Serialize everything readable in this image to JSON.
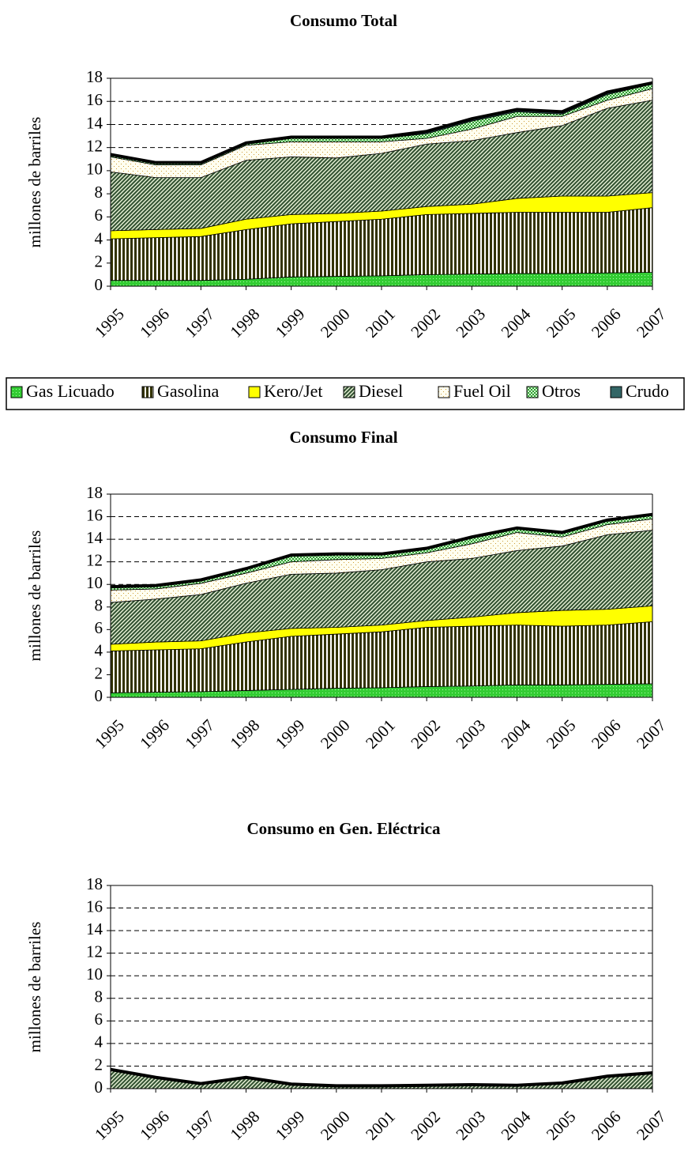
{
  "chart_data": [
    {
      "type": "stacked-area",
      "title": "Consumo Total",
      "ylabel": "millones de barriles",
      "categories": [
        "1995",
        "1996",
        "1997",
        "1998",
        "1999",
        "2000",
        "2001",
        "2002",
        "2003",
        "2004",
        "2005",
        "2006",
        "2007"
      ],
      "ylim": [
        0,
        18
      ],
      "yticks": [
        0,
        2,
        4,
        6,
        8,
        10,
        12,
        14,
        16,
        18
      ],
      "grid": true,
      "legend": "bottom",
      "series": [
        {
          "name": "Gas Licuado",
          "color": "#33cc33",
          "pattern": "dots",
          "values": [
            0.5,
            0.5,
            0.5,
            0.6,
            0.8,
            0.85,
            0.9,
            1.0,
            1.05,
            1.1,
            1.1,
            1.15,
            1.2
          ]
        },
        {
          "name": "Gasolina",
          "color": "#333300",
          "pattern": "vlines",
          "values": [
            3.6,
            3.7,
            3.8,
            4.3,
            4.6,
            4.75,
            4.9,
            5.2,
            5.25,
            5.3,
            5.3,
            5.25,
            5.6
          ]
        },
        {
          "name": "Kero/Jet",
          "color": "#ffff00",
          "pattern": "solid",
          "values": [
            0.7,
            0.7,
            0.7,
            0.9,
            0.8,
            0.7,
            0.7,
            0.7,
            0.8,
            1.2,
            1.4,
            1.4,
            1.3
          ]
        },
        {
          "name": "Diesel",
          "color": "#2f4f2f",
          "pattern": "diag",
          "values": [
            5.1,
            4.5,
            4.4,
            5.1,
            5.0,
            4.8,
            5.0,
            5.4,
            5.5,
            5.7,
            6.1,
            7.6,
            8.0
          ]
        },
        {
          "name": "Fuel Oil",
          "color": "#cc9933",
          "pattern": "sparse",
          "values": [
            1.3,
            1.1,
            1.1,
            1.3,
            1.3,
            1.4,
            1.0,
            0.5,
            1.0,
            1.4,
            0.8,
            0.7,
            1.0
          ]
        },
        {
          "name": "Otros",
          "color": "#339933",
          "pattern": "check",
          "values": [
            0.1,
            0.1,
            0.1,
            0.1,
            0.3,
            0.3,
            0.3,
            0.4,
            0.7,
            0.4,
            0.2,
            0.5,
            0.4
          ]
        },
        {
          "name": "Crudo",
          "color": "#336666",
          "pattern": "solid",
          "values": [
            0.1,
            0.1,
            0.1,
            0.1,
            0.1,
            0.1,
            0.1,
            0.2,
            0.2,
            0.2,
            0.2,
            0.2,
            0.1
          ]
        }
      ]
    },
    {
      "type": "stacked-area",
      "title": "Consumo Final",
      "ylabel": "millones de barriles",
      "categories": [
        "1995",
        "1996",
        "1997",
        "1998",
        "1999",
        "2000",
        "2001",
        "2002",
        "2003",
        "2004",
        "2005",
        "2006",
        "2007"
      ],
      "ylim": [
        0,
        18
      ],
      "yticks": [
        0,
        2,
        4,
        6,
        8,
        10,
        12,
        14,
        16,
        18
      ],
      "grid": true,
      "series": [
        {
          "color": "#33cc33",
          "pattern": "dots",
          "values": [
            0.4,
            0.45,
            0.5,
            0.6,
            0.7,
            0.8,
            0.85,
            0.95,
            1.0,
            1.1,
            1.1,
            1.15,
            1.2
          ]
        },
        {
          "color": "#333300",
          "pattern": "vlines",
          "values": [
            3.7,
            3.75,
            3.8,
            4.3,
            4.7,
            4.8,
            4.95,
            5.25,
            5.3,
            5.3,
            5.2,
            5.25,
            5.5
          ]
        },
        {
          "color": "#ffff00",
          "pattern": "solid",
          "values": [
            0.6,
            0.7,
            0.7,
            0.8,
            0.7,
            0.6,
            0.6,
            0.6,
            0.8,
            1.1,
            1.4,
            1.4,
            1.4
          ]
        },
        {
          "color": "#2f4f2f",
          "pattern": "diag",
          "values": [
            3.7,
            3.8,
            4.1,
            4.4,
            4.8,
            4.8,
            4.9,
            5.2,
            5.2,
            5.5,
            5.7,
            6.6,
            6.7
          ]
        },
        {
          "color": "#cc9933",
          "pattern": "sparse",
          "values": [
            1.1,
            0.9,
            1.0,
            0.9,
            1.1,
            1.2,
            1.0,
            0.8,
            1.3,
            1.6,
            0.8,
            0.9,
            1.0
          ]
        },
        {
          "color": "#339933",
          "pattern": "check",
          "values": [
            0.2,
            0.2,
            0.2,
            0.3,
            0.5,
            0.4,
            0.3,
            0.3,
            0.5,
            0.3,
            0.3,
            0.3,
            0.3
          ]
        },
        {
          "color": "#336666",
          "pattern": "solid",
          "values": [
            0.1,
            0.1,
            0.1,
            0.1,
            0.1,
            0.1,
            0.1,
            0.1,
            0.1,
            0.1,
            0.1,
            0.1,
            0.1
          ]
        }
      ]
    },
    {
      "type": "stacked-area",
      "title": "Consumo en Gen. Eléctrica",
      "ylabel": "millones de barriles",
      "categories": [
        "1995",
        "1996",
        "1997",
        "1998",
        "1999",
        "2000",
        "2001",
        "2002",
        "2003",
        "2004",
        "2005",
        "2006",
        "2007"
      ],
      "ylim": [
        0,
        18
      ],
      "yticks": [
        0,
        2,
        4,
        6,
        8,
        10,
        12,
        14,
        16,
        18
      ],
      "grid": true,
      "series": [
        {
          "color": "#2f4f2f",
          "pattern": "diag",
          "values": [
            1.6,
            0.9,
            0.35,
            0.9,
            0.3,
            0.15,
            0.15,
            0.2,
            0.25,
            0.2,
            0.4,
            1.0,
            1.3
          ]
        },
        {
          "color": "#336666",
          "pattern": "solid",
          "values": [
            0.1,
            0.1,
            0.1,
            0.1,
            0.1,
            0.1,
            0.1,
            0.1,
            0.1,
            0.1,
            0.1,
            0.1,
            0.1
          ]
        }
      ]
    }
  ]
}
